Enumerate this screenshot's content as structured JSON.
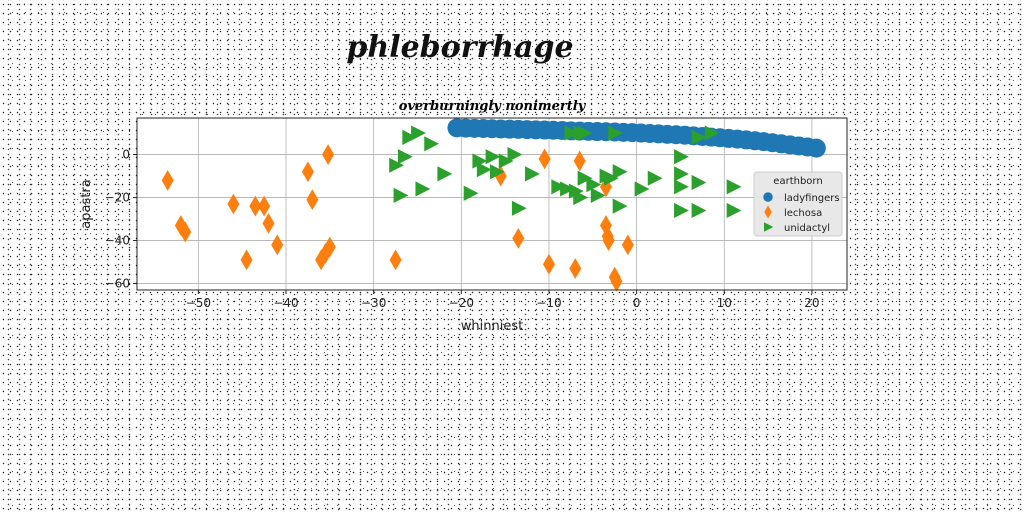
{
  "figure_title": "phleborrhage",
  "chart_data": {
    "type": "scatter",
    "title": "overburningly nonimertly",
    "xlabel": "whinniest",
    "ylabel": "apastra",
    "xlim": [
      -57,
      24
    ],
    "ylim": [
      -63,
      17
    ],
    "xticks": [
      -50,
      -40,
      -30,
      -20,
      -10,
      0,
      10,
      20
    ],
    "yticks": [
      0,
      -20,
      -40,
      -60
    ],
    "xtick_labels": [
      "−50",
      "−40",
      "−30",
      "−20",
      "−10",
      "0",
      "10",
      "20"
    ],
    "ytick_labels": [
      "0",
      "−20",
      "−40",
      "−60"
    ],
    "grid": true,
    "legend": {
      "title": "earthborn",
      "placement": "right"
    },
    "series": [
      {
        "name": "ladyfingers",
        "marker": "circle",
        "color": "#1f77b4",
        "x": [
          -20.5,
          -19.5,
          -18.5,
          -17.5,
          -16.5,
          -15.5,
          -14.5,
          -13.5,
          -12.5,
          -11.5,
          -10.5,
          -9.5,
          -8.5,
          -7.5,
          -6.5,
          -5.5,
          -4.5,
          -3.5,
          -2.5,
          -1.5,
          -0.5,
          0.5,
          1.5,
          2.5,
          3.5,
          4.5,
          5.5,
          6.5,
          7.5,
          8.5,
          9.5,
          10.5,
          11.5,
          12.5,
          13.5,
          14.5,
          15.5,
          16.5,
          17.5,
          18.5,
          19.5,
          20.5
        ],
        "y": [
          12.4,
          12.3,
          12.2,
          12.1,
          12.0,
          11.9,
          11.8,
          11.7,
          11.6,
          11.5,
          11.4,
          11.3,
          11.2,
          11.0,
          10.9,
          10.8,
          10.7,
          10.6,
          10.5,
          10.3,
          10.2,
          10.0,
          9.8,
          9.6,
          9.4,
          9.2,
          9.0,
          8.7,
          8.4,
          8.1,
          7.8,
          7.5,
          7.2,
          6.8,
          6.4,
          6.0,
          5.5,
          5.0,
          4.5,
          4.0,
          3.5,
          3.0
        ]
      },
      {
        "name": "lechosa",
        "marker": "thin_diamond",
        "color": "#ff7f0e",
        "x": [
          -53.5,
          -52,
          -51.5,
          -46,
          -44.5,
          -43.5,
          -42.5,
          -42,
          -41,
          -37.5,
          -37,
          -36,
          -35.5,
          -35,
          -35.2,
          -27.5,
          -15.5,
          -13.5,
          -10.5,
          -10,
          -7,
          -6.5,
          -3.5,
          -3.5,
          -3.3,
          -3.2,
          -2.5,
          -2.3,
          -1
        ],
        "y": [
          -12,
          -33,
          -36,
          -23,
          -49,
          -24,
          -24,
          -32,
          -42,
          -8,
          -21,
          -49,
          -46,
          -43,
          0,
          -49,
          -10,
          -39,
          -2,
          -51,
          -53,
          -3,
          -15,
          -33,
          -38,
          -40,
          -57,
          -59,
          -42
        ]
      },
      {
        "name": "unidactyl",
        "marker": "triangle_right",
        "color": "#2ca02c",
        "x": [
          -26,
          -25,
          -23.5,
          -26.5,
          -27.5,
          -27,
          -24.5,
          -22,
          -19,
          -18,
          -17.5,
          -16.5,
          -16,
          -15,
          -13.5,
          -14,
          -12,
          -9,
          -8,
          -7.5,
          -7,
          -6.5,
          -6.5,
          -6,
          -6,
          -5,
          -4.5,
          -3.5,
          -3,
          -2.5,
          -2,
          -2,
          0.5,
          2,
          5,
          5,
          5,
          7,
          7,
          5,
          7,
          8.5,
          11,
          11
        ],
        "y": [
          8,
          10,
          5,
          -1,
          -5,
          -19,
          -16,
          -9,
          -18,
          -3,
          -7,
          -1,
          -8,
          -3,
          -25,
          0,
          -9,
          -15,
          -16,
          10,
          -17,
          -20,
          10,
          10,
          -11,
          -14,
          -19,
          -10,
          -11,
          10,
          -8,
          -24,
          -16,
          -11,
          -1,
          -9,
          -15,
          -13,
          -26,
          -26,
          8,
          10,
          -15,
          -26
        ]
      }
    ]
  }
}
